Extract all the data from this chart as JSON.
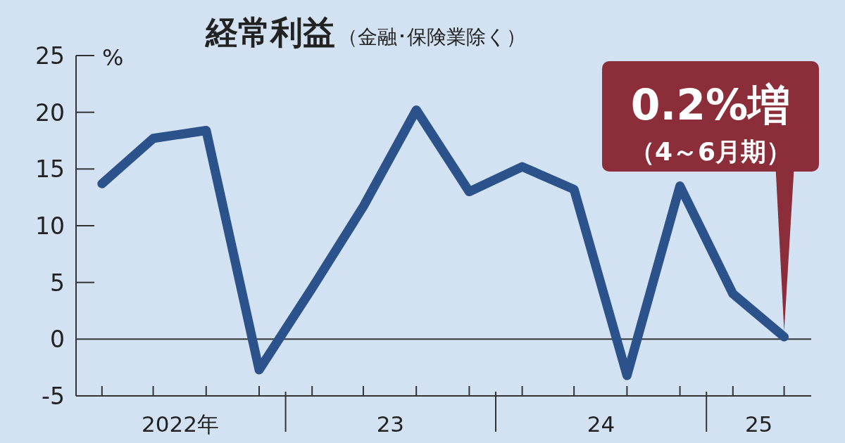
{
  "chart_data": {
    "type": "line",
    "title": "経常利益",
    "subtitle": "（金融･保険業除く）",
    "ylabel": "%",
    "x": [
      "2022-02-15",
      "2022-05-15",
      "2022-08-15",
      "2022-11-15",
      "2023-02-15",
      "2023-05-15",
      "2023-08-15",
      "2023-11-15",
      "2024-02-15",
      "2024-05-15",
      "2024-08-15",
      "2024-11-15",
      "2025-02-15",
      "2025-05-15"
    ],
    "series": [
      {
        "color": "#2b528a",
        "values": [
          13.7,
          17.7,
          18.4,
          -2.7,
          4.5,
          11.7,
          20.2,
          13.0,
          15.2,
          13.2,
          -3.2,
          13.5,
          4.0,
          0.2
        ]
      }
    ],
    "xlim": [
      "2022-01-01",
      "2025-07-01"
    ],
    "xticks": [
      {
        "value": "2022-07-01",
        "label": "2022年"
      },
      {
        "value": "2023-07-01",
        "label": "23"
      },
      {
        "value": "2024-07-01",
        "label": "24"
      },
      {
        "value": "2025-04-01",
        "label": "25"
      }
    ],
    "ylim": [
      -5,
      25
    ],
    "yticks": [
      -5,
      0,
      5,
      10,
      15,
      20,
      25
    ],
    "ref_lines": [
      {
        "axis": "y",
        "value": 0
      }
    ],
    "annotations": [
      {
        "text": "0.2%増",
        "x": "2025-05-15",
        "y": 0.2
      },
      "（4～6月期）"
    ],
    "grid": false,
    "marker": "none",
    "line_style": "solid"
  }
}
